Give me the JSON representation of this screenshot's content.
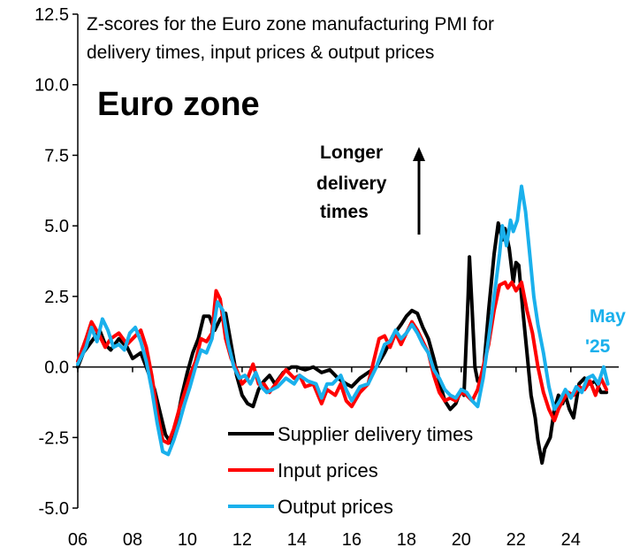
{
  "chart_data": {
    "type": "line",
    "title": "Z-scores for the Euro zone manufacturing PMI for delivery times, input prices & output prices",
    "title_lines": [
      "Z-scores for the Euro zone manufacturing PMI for",
      "delivery times, input prices & output prices"
    ],
    "panel_label": "Euro zone",
    "annotation": [
      "Longer",
      "delivery",
      "times"
    ],
    "end_label": [
      "May",
      "'25"
    ],
    "xlabel": "",
    "ylabel": "",
    "xlim": [
      2006.0,
      2025.75
    ],
    "ylim": [
      -5,
      12.5
    ],
    "yticks": [
      12.5,
      10.0,
      7.5,
      5.0,
      2.5,
      0.0,
      -2.5,
      -5.0
    ],
    "ytick_labels": [
      "12.5",
      "10.0",
      "7.5",
      "5.0",
      "2.5",
      "0.0",
      "-2.5",
      "-5.0"
    ],
    "xticks": [
      2006,
      2008,
      2010,
      2012,
      2014,
      2016,
      2018,
      2020,
      2022,
      2024
    ],
    "xtick_labels": [
      "06",
      "08",
      "10",
      "12",
      "14",
      "16",
      "18",
      "20",
      "22",
      "24"
    ],
    "legend": "bottom-center",
    "colors": {
      "delivery": "#000000",
      "input": "#ff0000",
      "output": "#1ab0ec",
      "may_label": "#1ab0ec",
      "axis": "#000000"
    },
    "series": [
      {
        "name": "Supplier delivery times",
        "color": "#000000",
        "points": [
          [
            2006.0,
            0.0
          ],
          [
            2006.2,
            0.5
          ],
          [
            2006.5,
            0.9
          ],
          [
            2006.8,
            1.3
          ],
          [
            2007.0,
            0.8
          ],
          [
            2007.2,
            0.6
          ],
          [
            2007.5,
            1.0
          ],
          [
            2007.8,
            0.7
          ],
          [
            2008.0,
            0.3
          ],
          [
            2008.3,
            0.5
          ],
          [
            2008.5,
            0.0
          ],
          [
            2008.8,
            -0.8
          ],
          [
            2009.0,
            -1.6
          ],
          [
            2009.2,
            -2.4
          ],
          [
            2009.4,
            -2.7
          ],
          [
            2009.6,
            -2.0
          ],
          [
            2009.8,
            -1.0
          ],
          [
            2010.0,
            -0.2
          ],
          [
            2010.2,
            0.5
          ],
          [
            2010.4,
            1.0
          ],
          [
            2010.6,
            1.8
          ],
          [
            2010.8,
            1.8
          ],
          [
            2011.0,
            1.3
          ],
          [
            2011.2,
            1.7
          ],
          [
            2011.4,
            1.9
          ],
          [
            2011.6,
            0.8
          ],
          [
            2011.8,
            -0.3
          ],
          [
            2012.0,
            -1.0
          ],
          [
            2012.2,
            -1.3
          ],
          [
            2012.4,
            -1.4
          ],
          [
            2012.6,
            -0.8
          ],
          [
            2012.8,
            -0.5
          ],
          [
            2013.0,
            -0.3
          ],
          [
            2013.2,
            -0.6
          ],
          [
            2013.5,
            -0.2
          ],
          [
            2013.8,
            0.0
          ],
          [
            2014.0,
            0.0
          ],
          [
            2014.3,
            -0.1
          ],
          [
            2014.6,
            0.0
          ],
          [
            2014.9,
            -0.2
          ],
          [
            2015.2,
            -0.1
          ],
          [
            2015.5,
            -0.4
          ],
          [
            2015.8,
            -0.6
          ],
          [
            2016.0,
            -0.7
          ],
          [
            2016.3,
            -0.4
          ],
          [
            2016.6,
            -0.2
          ],
          [
            2016.9,
            0.0
          ],
          [
            2017.2,
            0.5
          ],
          [
            2017.5,
            1.1
          ],
          [
            2017.8,
            1.5
          ],
          [
            2018.0,
            1.8
          ],
          [
            2018.2,
            2.0
          ],
          [
            2018.4,
            1.9
          ],
          [
            2018.6,
            1.4
          ],
          [
            2018.8,
            1.0
          ],
          [
            2019.0,
            0.3
          ],
          [
            2019.2,
            -0.5
          ],
          [
            2019.4,
            -1.2
          ],
          [
            2019.6,
            -1.5
          ],
          [
            2019.8,
            -1.3
          ],
          [
            2020.0,
            -0.8
          ],
          [
            2020.1,
            -1.0
          ],
          [
            2020.25,
            2.5
          ],
          [
            2020.3,
            3.9
          ],
          [
            2020.4,
            2.0
          ],
          [
            2020.5,
            0.0
          ],
          [
            2020.6,
            -0.5
          ],
          [
            2020.8,
            -0.3
          ],
          [
            2021.0,
            2.0
          ],
          [
            2021.2,
            4.0
          ],
          [
            2021.35,
            5.1
          ],
          [
            2021.5,
            4.5
          ],
          [
            2021.6,
            4.9
          ],
          [
            2021.75,
            4.2
          ],
          [
            2021.9,
            3.0
          ],
          [
            2022.0,
            3.7
          ],
          [
            2022.1,
            3.6
          ],
          [
            2022.25,
            2.0
          ],
          [
            2022.4,
            0.5
          ],
          [
            2022.55,
            -1.0
          ],
          [
            2022.7,
            -1.8
          ],
          [
            2022.8,
            -2.6
          ],
          [
            2022.95,
            -3.4
          ],
          [
            2023.05,
            -2.9
          ],
          [
            2023.25,
            -2.5
          ],
          [
            2023.4,
            -1.5
          ],
          [
            2023.55,
            -1.0
          ],
          [
            2023.7,
            -1.3
          ],
          [
            2023.8,
            -1.0
          ],
          [
            2023.95,
            -1.5
          ],
          [
            2024.1,
            -1.8
          ],
          [
            2024.3,
            -0.6
          ],
          [
            2024.5,
            -0.4
          ],
          [
            2024.7,
            -0.6
          ],
          [
            2024.9,
            -0.5
          ],
          [
            2025.1,
            -0.9
          ],
          [
            2025.3,
            -0.9
          ]
        ]
      },
      {
        "name": "Input prices",
        "color": "#ff0000",
        "points": [
          [
            2006.0,
            0.2
          ],
          [
            2006.3,
            1.0
          ],
          [
            2006.5,
            1.6
          ],
          [
            2006.8,
            1.1
          ],
          [
            2007.0,
            0.7
          ],
          [
            2007.2,
            1.0
          ],
          [
            2007.5,
            1.2
          ],
          [
            2007.8,
            0.8
          ],
          [
            2008.0,
            1.0
          ],
          [
            2008.3,
            1.3
          ],
          [
            2008.5,
            0.7
          ],
          [
            2008.7,
            -0.3
          ],
          [
            2008.9,
            -1.6
          ],
          [
            2009.1,
            -2.6
          ],
          [
            2009.3,
            -2.7
          ],
          [
            2009.5,
            -2.2
          ],
          [
            2009.7,
            -1.5
          ],
          [
            2009.9,
            -0.9
          ],
          [
            2010.1,
            -0.3
          ],
          [
            2010.3,
            0.2
          ],
          [
            2010.5,
            1.0
          ],
          [
            2010.7,
            0.9
          ],
          [
            2010.9,
            1.2
          ],
          [
            2011.05,
            2.7
          ],
          [
            2011.2,
            2.4
          ],
          [
            2011.4,
            1.0
          ],
          [
            2011.6,
            0.3
          ],
          [
            2011.8,
            -0.1
          ],
          [
            2012.0,
            -0.6
          ],
          [
            2012.2,
            -0.4
          ],
          [
            2012.4,
            0.1
          ],
          [
            2012.6,
            -0.6
          ],
          [
            2012.8,
            -0.6
          ],
          [
            2013.0,
            -0.9
          ],
          [
            2013.3,
            -0.5
          ],
          [
            2013.6,
            -0.1
          ],
          [
            2013.9,
            -0.4
          ],
          [
            2014.1,
            -0.3
          ],
          [
            2014.3,
            -0.7
          ],
          [
            2014.6,
            -0.6
          ],
          [
            2014.9,
            -1.3
          ],
          [
            2015.1,
            -0.8
          ],
          [
            2015.4,
            -1.0
          ],
          [
            2015.6,
            -0.6
          ],
          [
            2015.8,
            -1.2
          ],
          [
            2016.0,
            -1.4
          ],
          [
            2016.3,
            -0.9
          ],
          [
            2016.6,
            -0.6
          ],
          [
            2016.8,
            0.2
          ],
          [
            2017.0,
            1.0
          ],
          [
            2017.2,
            1.1
          ],
          [
            2017.4,
            0.7
          ],
          [
            2017.6,
            1.2
          ],
          [
            2017.8,
            0.8
          ],
          [
            2018.0,
            1.2
          ],
          [
            2018.2,
            1.6
          ],
          [
            2018.4,
            1.3
          ],
          [
            2018.6,
            0.9
          ],
          [
            2018.8,
            0.5
          ],
          [
            2019.0,
            -0.3
          ],
          [
            2019.2,
            -0.9
          ],
          [
            2019.4,
            -1.2
          ],
          [
            2019.6,
            -1.1
          ],
          [
            2019.8,
            -1.2
          ],
          [
            2020.0,
            -0.9
          ],
          [
            2020.2,
            -1.0
          ],
          [
            2020.4,
            -1.2
          ],
          [
            2020.6,
            -0.8
          ],
          [
            2020.8,
            0.0
          ],
          [
            2021.0,
            0.8
          ],
          [
            2021.2,
            2.0
          ],
          [
            2021.4,
            2.9
          ],
          [
            2021.6,
            3.0
          ],
          [
            2021.7,
            2.8
          ],
          [
            2021.85,
            3.0
          ],
          [
            2022.0,
            2.7
          ],
          [
            2022.2,
            3.0
          ],
          [
            2022.4,
            2.0
          ],
          [
            2022.6,
            1.2
          ],
          [
            2022.8,
            0.0
          ],
          [
            2023.0,
            -0.9
          ],
          [
            2023.2,
            -1.5
          ],
          [
            2023.4,
            -1.9
          ],
          [
            2023.55,
            -1.5
          ],
          [
            2023.7,
            -1.2
          ],
          [
            2023.9,
            -0.9
          ],
          [
            2024.1,
            -1.0
          ],
          [
            2024.3,
            -0.7
          ],
          [
            2024.5,
            -0.8
          ],
          [
            2024.7,
            -0.5
          ],
          [
            2024.9,
            -1.0
          ],
          [
            2025.1,
            -0.4
          ],
          [
            2025.3,
            -0.8
          ]
        ]
      },
      {
        "name": "Output prices",
        "color": "#1ab0ec",
        "points": [
          [
            2006.0,
            0.1
          ],
          [
            2006.3,
            0.7
          ],
          [
            2006.5,
            1.4
          ],
          [
            2006.7,
            0.9
          ],
          [
            2006.9,
            1.7
          ],
          [
            2007.1,
            1.3
          ],
          [
            2007.3,
            0.7
          ],
          [
            2007.5,
            0.8
          ],
          [
            2007.7,
            0.6
          ],
          [
            2007.9,
            1.2
          ],
          [
            2008.1,
            1.4
          ],
          [
            2008.3,
            0.9
          ],
          [
            2008.5,
            0.2
          ],
          [
            2008.7,
            -0.8
          ],
          [
            2008.9,
            -2.0
          ],
          [
            2009.1,
            -3.0
          ],
          [
            2009.3,
            -3.1
          ],
          [
            2009.5,
            -2.6
          ],
          [
            2009.7,
            -2.0
          ],
          [
            2009.9,
            -1.3
          ],
          [
            2010.1,
            -0.7
          ],
          [
            2010.3,
            0.0
          ],
          [
            2010.5,
            0.6
          ],
          [
            2010.7,
            0.5
          ],
          [
            2010.9,
            1.0
          ],
          [
            2011.1,
            2.3
          ],
          [
            2011.3,
            2.0
          ],
          [
            2011.5,
            0.8
          ],
          [
            2011.7,
            0.0
          ],
          [
            2011.9,
            -0.4
          ],
          [
            2012.1,
            -0.3
          ],
          [
            2012.3,
            -0.6
          ],
          [
            2012.5,
            -0.2
          ],
          [
            2012.7,
            -0.7
          ],
          [
            2012.9,
            -0.9
          ],
          [
            2013.1,
            -0.8
          ],
          [
            2013.3,
            -0.7
          ],
          [
            2013.6,
            -0.4
          ],
          [
            2013.9,
            -0.6
          ],
          [
            2014.1,
            -0.3
          ],
          [
            2014.4,
            -0.5
          ],
          [
            2014.7,
            -0.6
          ],
          [
            2014.9,
            -1.1
          ],
          [
            2015.1,
            -0.6
          ],
          [
            2015.3,
            -0.6
          ],
          [
            2015.6,
            -0.3
          ],
          [
            2015.8,
            -0.8
          ],
          [
            2016.0,
            -1.2
          ],
          [
            2016.3,
            -0.7
          ],
          [
            2016.6,
            -0.6
          ],
          [
            2016.9,
            0.0
          ],
          [
            2017.2,
            0.8
          ],
          [
            2017.4,
            0.9
          ],
          [
            2017.6,
            1.3
          ],
          [
            2017.8,
            1.0
          ],
          [
            2018.0,
            1.2
          ],
          [
            2018.2,
            1.5
          ],
          [
            2018.4,
            1.2
          ],
          [
            2018.6,
            0.8
          ],
          [
            2018.8,
            0.5
          ],
          [
            2019.0,
            -0.1
          ],
          [
            2019.2,
            -0.4
          ],
          [
            2019.4,
            -0.8
          ],
          [
            2019.6,
            -1.0
          ],
          [
            2019.8,
            -1.1
          ],
          [
            2020.0,
            -0.8
          ],
          [
            2020.2,
            -0.9
          ],
          [
            2020.4,
            -1.2
          ],
          [
            2020.6,
            -1.4
          ],
          [
            2020.8,
            -0.4
          ],
          [
            2021.0,
            1.0
          ],
          [
            2021.2,
            2.5
          ],
          [
            2021.4,
            4.0
          ],
          [
            2021.5,
            5.0
          ],
          [
            2021.65,
            4.3
          ],
          [
            2021.8,
            5.2
          ],
          [
            2021.9,
            4.8
          ],
          [
            2022.05,
            5.2
          ],
          [
            2022.2,
            6.4
          ],
          [
            2022.35,
            5.5
          ],
          [
            2022.5,
            4.0
          ],
          [
            2022.65,
            2.5
          ],
          [
            2022.8,
            1.5
          ],
          [
            2023.0,
            0.5
          ],
          [
            2023.2,
            -0.7
          ],
          [
            2023.4,
            -1.5
          ],
          [
            2023.6,
            -1.2
          ],
          [
            2023.8,
            -0.8
          ],
          [
            2024.0,
            -1.1
          ],
          [
            2024.2,
            -0.7
          ],
          [
            2024.4,
            -0.9
          ],
          [
            2024.6,
            -0.4
          ],
          [
            2024.8,
            -0.3
          ],
          [
            2025.0,
            -0.6
          ],
          [
            2025.2,
            0.0
          ],
          [
            2025.35,
            -0.6
          ]
        ]
      }
    ]
  }
}
